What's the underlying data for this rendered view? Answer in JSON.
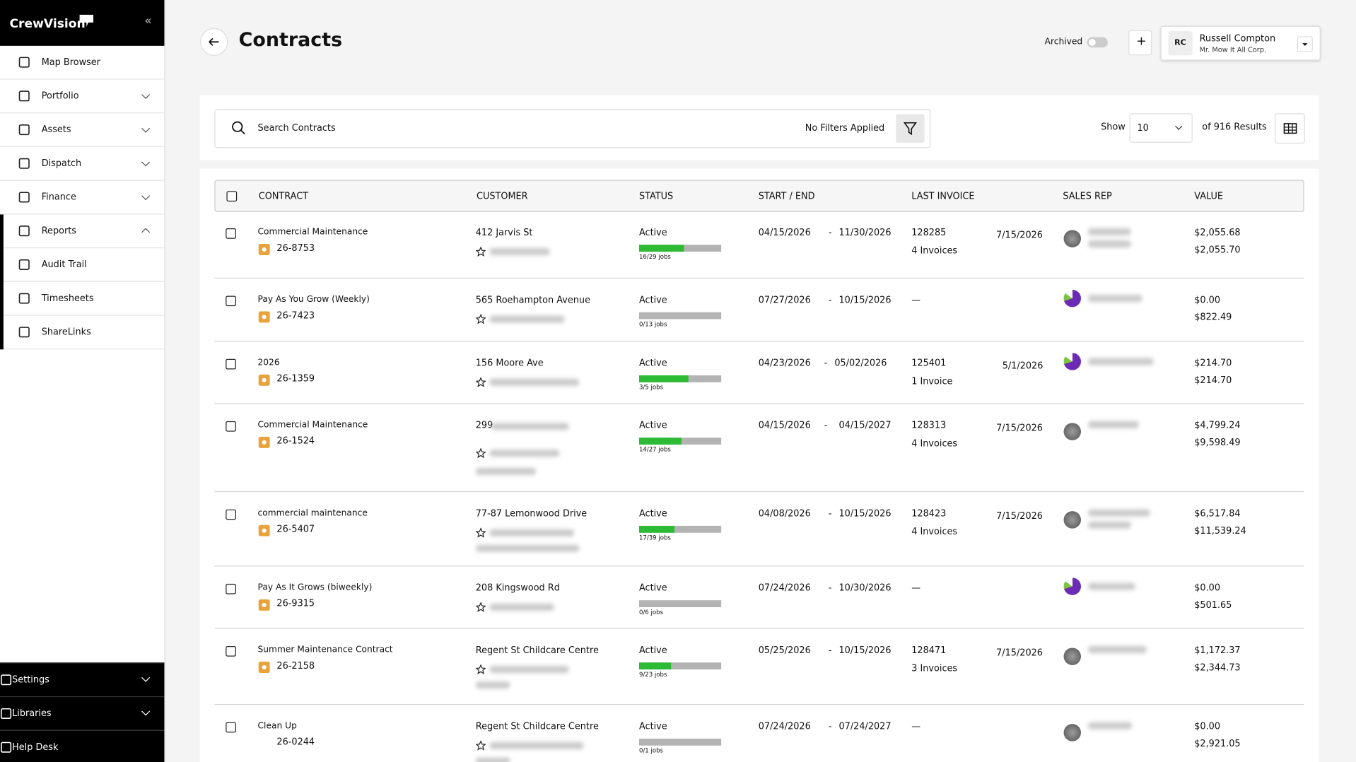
{
  "sidebar": {
    "logo": "CrewVision",
    "collapse": "«",
    "items": [
      "Map Browser",
      "Portfolio",
      "Assets",
      "Dispatch",
      "Finance",
      "Reports",
      "Audit Trail",
      "Timesheets",
      "ShareLinks"
    ],
    "bottom_items": [
      "Settings",
      "Libraries",
      "Help Desk"
    ]
  },
  "header": {
    "title": "Contracts",
    "archived_label": "Archived",
    "add": "+",
    "user_initials": "RC",
    "user_name": "Russell Compton",
    "user_company": "Mr. Mow It All Corp."
  },
  "toolbar": {
    "search_placeholder": "Search Contracts",
    "filter_status": "No Filters Applied",
    "show_label": "Show",
    "show_value": "10",
    "results": "of 916 Results"
  },
  "table": {
    "columns": [
      "CONTRACT",
      "CUSTOMER",
      "STATUS",
      "START / END",
      "LAST INVOICE",
      "SALES REP",
      "VALUE"
    ],
    "date_separator": "-",
    "rows": [
      {
        "name": "Commercial Maintenance",
        "code": "26-8753",
        "customer": "412 Jarvis St",
        "status": "Active",
        "jobs_done": 16,
        "jobs_total": 29,
        "jobs_label": "16/29 jobs",
        "start": "04/15/2026",
        "end": "11/30/2026",
        "invoice": "128285",
        "invoice_count": "4 Invoices",
        "invoice_date": "7/15/2026",
        "value": "$2,055.68",
        "total": "$2,055.70"
      },
      {
        "name": "Pay As You Grow (Weekly)",
        "code": "26-7423",
        "customer": "565 Roehampton Avenue",
        "status": "Active",
        "jobs_done": 0,
        "jobs_total": 13,
        "jobs_label": "0/13 jobs",
        "start": "07/27/2026",
        "end": "10/15/2026",
        "invoice": "—",
        "value": "$0.00",
        "total": "$822.49"
      },
      {
        "name": "2026",
        "code": "26-1359",
        "customer": "156 Moore Ave",
        "status": "Active",
        "jobs_done": 3,
        "jobs_total": 5,
        "jobs_label": "3/5 jobs",
        "start": "04/23/2026",
        "end": "05/02/2026",
        "invoice": "125401",
        "invoice_count": "1 Invoice",
        "invoice_date": "5/1/2026",
        "value": "$214.70",
        "total": "$214.70"
      },
      {
        "name": "Commercial Maintenance",
        "code": "26-1524",
        "customer": "299",
        "status": "Active",
        "jobs_done": 14,
        "jobs_total": 27,
        "jobs_label": "14/27 jobs",
        "start": "04/15/2026",
        "end": "04/15/2027",
        "invoice": "128313",
        "invoice_count": "4 Invoices",
        "invoice_date": "7/15/2026",
        "value": "$4,799.24",
        "total": "$9,598.49"
      },
      {
        "name": "commercial maintenance",
        "code": "26-5407",
        "customer": "77-87 Lemonwood Drive",
        "status": "Active",
        "jobs_done": 17,
        "jobs_total": 39,
        "jobs_label": "17/39 jobs",
        "start": "04/08/2026",
        "end": "10/15/2026",
        "invoice": "128423",
        "invoice_count": "4 Invoices",
        "invoice_date": "7/15/2026",
        "value": "$6,517.84",
        "total": "$11,539.24"
      },
      {
        "name": "Pay As It Grows (biweekly)",
        "code": "26-9315",
        "customer": "208 Kingswood Rd",
        "status": "Active",
        "jobs_done": 0,
        "jobs_total": 6,
        "jobs_label": "0/6 jobs",
        "start": "07/24/2026",
        "end": "10/30/2026",
        "invoice": "—",
        "value": "$0.00",
        "total": "$501.65"
      },
      {
        "name": "Summer Maintenance Contract",
        "code": "26-2158",
        "customer": "Regent St Childcare Centre",
        "status": "Active",
        "jobs_done": 9,
        "jobs_total": 23,
        "jobs_label": "9/23 jobs",
        "start": "05/25/2026",
        "end": "10/15/2026",
        "invoice": "128471",
        "invoice_count": "3 Invoices",
        "invoice_date": "7/15/2026",
        "value": "$1,172.37",
        "total": "$2,344.73"
      },
      {
        "name": "Clean Up",
        "code": "26-0244",
        "customer": "Regent St Childcare Centre",
        "status": "Active",
        "jobs_done": 0,
        "jobs_total": 1,
        "jobs_label": "0/1 jobs",
        "start": "07/24/2026",
        "end": "07/24/2027",
        "invoice": "—",
        "value": "$0.00",
        "total": "$2,921.05"
      }
    ]
  }
}
